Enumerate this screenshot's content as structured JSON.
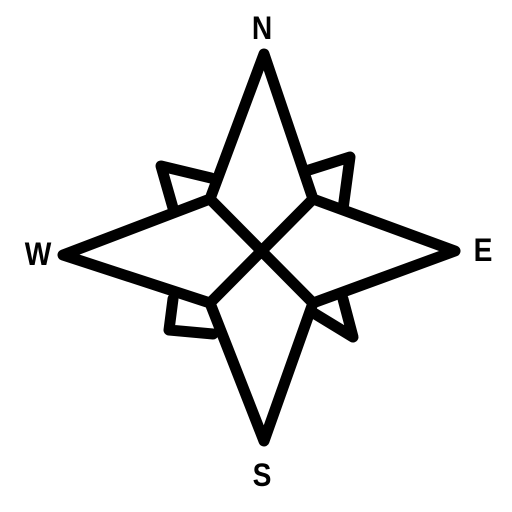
{
  "compass": {
    "north": "N",
    "south": "S",
    "west": "W",
    "east": "E"
  },
  "colors": {
    "stroke": "#000000",
    "background": "#ffffff"
  },
  "icon": "compass-rose-icon"
}
